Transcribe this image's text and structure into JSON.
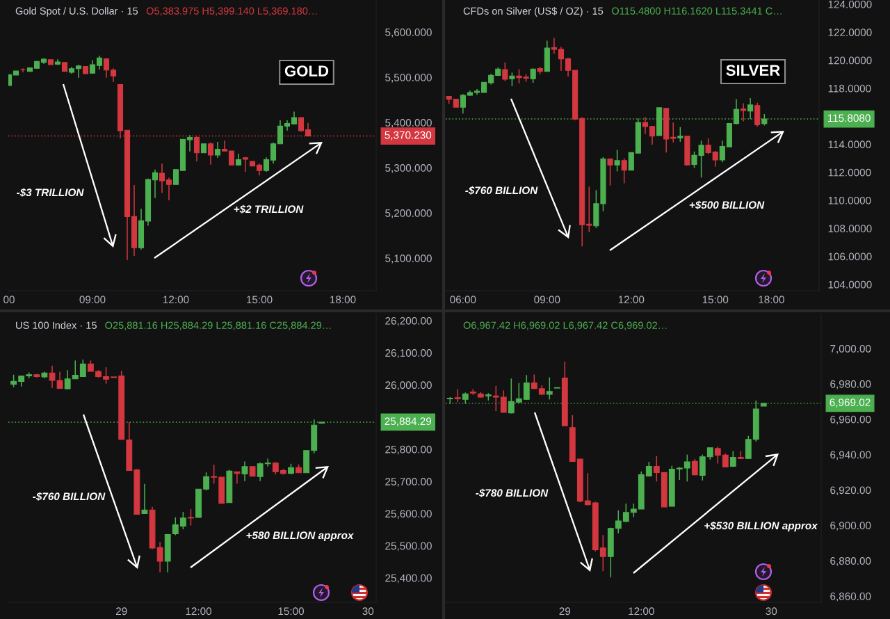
{
  "chart_data": [
    {
      "type": "candlestick",
      "title": "Gold Spot / U.S. Dollar · 15",
      "subtitle": "O5,383.975 H5,399.140 L5,369.180…",
      "categories": [
        "00",
        null,
        null,
        null,
        null,
        null,
        null,
        null,
        null,
        null,
        null,
        null,
        "09:00",
        null,
        null,
        null,
        null,
        null,
        null,
        null,
        null,
        null,
        null,
        null,
        "12:00",
        null,
        null,
        null,
        null,
        null,
        null,
        null,
        null,
        null,
        null,
        null,
        "15:00",
        null,
        null,
        null,
        null,
        null,
        null,
        null,
        null,
        null,
        null,
        null,
        "18:00"
      ],
      "ohlc": [
        [
          5482,
          5506,
          5482,
          5506
        ],
        [
          5505,
          5514,
          5505,
          5514
        ],
        [
          5517,
          5520,
          5511,
          5517
        ],
        [
          5513,
          5521,
          5513,
          5521
        ],
        [
          5520,
          5536,
          5519,
          5535
        ],
        [
          5533,
          5542,
          5530,
          5540
        ],
        [
          5539,
          5539,
          5528,
          5528
        ],
        [
          5529,
          5540,
          5527,
          5534
        ],
        [
          5533,
          5533,
          5513,
          5513
        ],
        [
          5511,
          5523,
          5508,
          5519
        ],
        [
          5519,
          5528,
          5499,
          5525
        ],
        [
          5524,
          5524,
          5508,
          5508
        ],
        [
          5509,
          5538,
          5508,
          5528
        ],
        [
          5526,
          5548,
          5517,
          5543
        ],
        [
          5541,
          5542,
          5499,
          5516
        ],
        [
          5516,
          5520,
          5490,
          5503
        ],
        [
          5484,
          5484,
          5365,
          5382
        ],
        [
          5383,
          5383,
          5096,
          5192
        ],
        [
          5192,
          5262,
          5105,
          5123
        ],
        [
          5123,
          5209,
          5119,
          5183
        ],
        [
          5182,
          5276,
          5172,
          5274
        ],
        [
          5273,
          5296,
          5233,
          5289
        ],
        [
          5288,
          5309,
          5244,
          5271
        ],
        [
          5273,
          5278,
          5228,
          5263
        ],
        [
          5263,
          5296,
          5263,
          5296
        ],
        [
          5294,
          5363,
          5294,
          5363
        ],
        [
          5362,
          5372,
          5336,
          5367
        ],
        [
          5367,
          5370,
          5314,
          5333
        ],
        [
          5333,
          5353,
          5333,
          5353
        ],
        [
          5353,
          5356,
          5307,
          5328
        ],
        [
          5328,
          5357,
          5322,
          5341
        ],
        [
          5341,
          5360,
          5336,
          5337
        ],
        [
          5337,
          5337,
          5306,
          5306
        ],
        [
          5306,
          5331,
          5304,
          5318
        ],
        [
          5322,
          5324,
          5291,
          5319
        ],
        [
          5314,
          5314,
          5304,
          5304
        ],
        [
          5306,
          5309,
          5283,
          5294
        ],
        [
          5294,
          5323,
          5291,
          5318
        ],
        [
          5317,
          5356,
          5309,
          5353
        ],
        [
          5353,
          5405,
          5352,
          5392
        ],
        [
          5392,
          5405,
          5382,
          5398
        ],
        [
          5397,
          5424,
          5396,
          5411
        ],
        [
          5411,
          5411,
          5380,
          5382
        ],
        [
          5383.975,
          5399.14,
          5369.18,
          5370.23
        ],
        null,
        null,
        null,
        null,
        null
      ],
      "colors": [
        "#4caf50",
        "#4caf50",
        "#d3373f",
        "#4caf50",
        "#4caf50",
        "#4caf50",
        "#d3373f",
        "#4caf50",
        "#d3373f",
        "#4caf50",
        "#4caf50",
        "#d3373f",
        "#4caf50",
        "#4caf50",
        "#d3373f",
        "#d3373f",
        "#d3373f",
        "#d3373f",
        "#d3373f",
        "#4caf50",
        "#4caf50",
        "#4caf50",
        "#d3373f",
        "#d3373f",
        "#4caf50",
        "#4caf50",
        "#4caf50",
        "#d3373f",
        "#4caf50",
        "#d3373f",
        "#4caf50",
        "#d3373f",
        "#d3373f",
        "#4caf50",
        "#d3373f",
        "#d3373f",
        "#d3373f",
        "#4caf50",
        "#4caf50",
        "#4caf50",
        "#4caf50",
        "#4caf50",
        "#d3373f",
        "#d3373f",
        null,
        null,
        null,
        null,
        null
      ],
      "ylim": [
        5028,
        5671
      ],
      "yticks": [
        {
          "value": 5100,
          "label": "5,100.000"
        },
        {
          "value": 5200,
          "label": "5,200.000"
        },
        {
          "value": 5300,
          "label": "5,300.000"
        },
        {
          "value": 5400,
          "label": "5,400.000"
        },
        {
          "value": 5500,
          "label": "5,500.000"
        },
        {
          "value": 5600,
          "label": "5,600.000"
        }
      ],
      "ref_lines": [
        {
          "axis": "y",
          "value": 5370.23,
          "label": "5,370.230",
          "color": "#d3373f",
          "line_style": "dotted"
        }
      ],
      "annotations": [
        "GOLD",
        "-$3 TRILLION",
        "+$2 TRILLION"
      ]
    },
    {
      "type": "candlestick",
      "title": "CFDs on Silver (US$ / OZ) · 15",
      "subtitle": "O115.4800 H116.1620 L115.3441 C…",
      "categories": [
        null,
        null,
        "06:00",
        null,
        null,
        null,
        null,
        null,
        null,
        null,
        null,
        null,
        null,
        null,
        "09:00",
        null,
        null,
        null,
        null,
        null,
        null,
        null,
        null,
        null,
        null,
        null,
        "12:00",
        null,
        null,
        null,
        null,
        null,
        null,
        null,
        null,
        null,
        null,
        null,
        "15:00",
        null,
        null,
        null,
        null,
        null,
        null,
        null,
        "18:00"
      ],
      "ohlc": [
        [
          117.42,
          117.42,
          116.89,
          117.22
        ],
        [
          117.22,
          117.22,
          116.65,
          116.65
        ],
        [
          116.65,
          117.58,
          116.2,
          117.5
        ],
        [
          117.5,
          117.83,
          117.46,
          117.7
        ],
        [
          117.7,
          117.95,
          117.54,
          117.79
        ],
        [
          117.7,
          118.43,
          117.7,
          118.43
        ],
        [
          118.39,
          119.04,
          118.27,
          118.92
        ],
        [
          118.92,
          119.49,
          118.88,
          119.37
        ],
        [
          119.33,
          119.85,
          118.51,
          118.64
        ],
        [
          118.68,
          119.12,
          118.15,
          118.88
        ],
        [
          118.88,
          119.37,
          118.35,
          118.76
        ],
        [
          118.8,
          119.0,
          118.47,
          118.72
        ],
        [
          118.68,
          119.41,
          118.39,
          119.37
        ],
        [
          119.41,
          119.53,
          119.0,
          119.2
        ],
        [
          119.2,
          121.39,
          119.2,
          120.87
        ],
        [
          120.91,
          121.59,
          120.46,
          120.78
        ],
        [
          120.78,
          120.95,
          119.24,
          120.1
        ],
        [
          120.1,
          120.18,
          118.84,
          119.28
        ],
        [
          119.28,
          119.28,
          115.72,
          115.8
        ],
        [
          115.84,
          115.92,
          106.72,
          108.26
        ],
        [
          108.3,
          110.98,
          107.73,
          108.22
        ],
        [
          108.18,
          110.73,
          108.02,
          109.76
        ],
        [
          109.76,
          113.08,
          109.23,
          112.96
        ],
        [
          112.96,
          113.0,
          111.06,
          112.52
        ],
        [
          112.52,
          113.61,
          112.07,
          112.84
        ],
        [
          112.84,
          113.0,
          111.22,
          112.15
        ],
        [
          112.15,
          113.41,
          112.15,
          113.41
        ],
        [
          113.37,
          115.84,
          113.37,
          115.56
        ],
        [
          115.56,
          115.96,
          114.75,
          115.27
        ],
        [
          115.27,
          115.31,
          113.98,
          114.58
        ],
        [
          114.62,
          116.61,
          114.62,
          116.61
        ],
        [
          116.57,
          116.57,
          113.41,
          114.38
        ],
        [
          114.5,
          115.56,
          114.14,
          114.42
        ],
        [
          114.46,
          115.23,
          114.18,
          114.58
        ],
        [
          114.58,
          114.58,
          112.52,
          112.52
        ],
        [
          112.56,
          113.49,
          112.31,
          113.21
        ],
        [
          113.21,
          114.26,
          111.63,
          113.94
        ],
        [
          113.94,
          114.42,
          113.29,
          113.41
        ],
        [
          113.45,
          113.53,
          112.4,
          112.88
        ],
        [
          112.88,
          114.26,
          112.72,
          113.85
        ],
        [
          113.81,
          115.48,
          113.81,
          115.48
        ],
        [
          115.48,
          117.22,
          115.43,
          116.49
        ],
        [
          116.53,
          116.93,
          115.64,
          116.41
        ],
        [
          116.37,
          117.3,
          115.8,
          116.81
        ],
        [
          116.77,
          116.97,
          115.27,
          115.39
        ],
        [
          115.48,
          116.162,
          115.3441,
          115.808
        ],
        null
      ],
      "colors": [
        "#d3373f",
        "#d3373f",
        "#4caf50",
        "#4caf50",
        "#4caf50",
        "#4caf50",
        "#4caf50",
        "#4caf50",
        "#d3373f",
        "#4caf50",
        "#d3373f",
        "#d3373f",
        "#4caf50",
        "#d3373f",
        "#4caf50",
        "#d3373f",
        "#d3373f",
        "#d3373f",
        "#d3373f",
        "#d3373f",
        "#d3373f",
        "#4caf50",
        "#4caf50",
        "#d3373f",
        "#4caf50",
        "#d3373f",
        "#4caf50",
        "#4caf50",
        "#d3373f",
        "#d3373f",
        "#4caf50",
        "#d3373f",
        "#d3373f",
        "#4caf50",
        "#d3373f",
        "#4caf50",
        "#4caf50",
        "#d3373f",
        "#d3373f",
        "#4caf50",
        "#4caf50",
        "#4caf50",
        "#d3373f",
        "#4caf50",
        "#d3373f",
        "#4caf50",
        null
      ],
      "ylim": [
        103.55,
        124.3
      ],
      "yticks": [
        {
          "value": 104,
          "label": "104.0000"
        },
        {
          "value": 106,
          "label": "106.0000"
        },
        {
          "value": 108,
          "label": "108.0000"
        },
        {
          "value": 110,
          "label": "110.0000"
        },
        {
          "value": 112,
          "label": "112.0000"
        },
        {
          "value": 114,
          "label": "114.0000"
        },
        {
          "value": 118,
          "label": "118.0000"
        },
        {
          "value": 120,
          "label": "120.0000"
        },
        {
          "value": 122,
          "label": "122.0000"
        },
        {
          "value": 124,
          "label": "124.0000"
        }
      ],
      "ref_lines": [
        {
          "axis": "y",
          "value": 115.808,
          "label": "115.8080",
          "color": "#4caf50",
          "line_style": "dotted"
        }
      ],
      "annotations": [
        "SILVER",
        "-$760 BILLION",
        "+$500 BILLION"
      ]
    },
    {
      "type": "candlestick",
      "title": "US 100 Index · 15",
      "subtitle": "O25,881.16 H25,884.29 L25,881.16 C25,884.29…",
      "categories": [
        null,
        null,
        null,
        null,
        null,
        null,
        null,
        null,
        null,
        null,
        null,
        null,
        null,
        null,
        "29",
        null,
        null,
        null,
        null,
        null,
        null,
        null,
        null,
        null,
        "12:00",
        null,
        null,
        null,
        null,
        null,
        null,
        null,
        null,
        null,
        null,
        null,
        "15:00",
        null,
        null,
        null,
        null,
        null,
        null,
        null,
        null,
        null,
        "30"
      ],
      "ohlc": [
        [
          26002,
          26032,
          25993,
          26011
        ],
        [
          26011,
          26028,
          25995,
          26028
        ],
        [
          26028,
          26039,
          26021,
          26032
        ],
        [
          26032,
          26034,
          26023,
          26026
        ],
        [
          26025,
          26041,
          26021,
          26037
        ],
        [
          26037,
          26060,
          25991,
          26014
        ],
        [
          26014,
          26041,
          25989,
          25989
        ],
        [
          25988,
          26046,
          25986,
          26019
        ],
        [
          26019,
          26076,
          26019,
          26030
        ],
        [
          26026,
          26079,
          26026,
          26065
        ],
        [
          26065,
          26076,
          26042,
          26042
        ],
        [
          26042,
          26046,
          26023,
          26026
        ],
        [
          26026,
          26055,
          26004,
          26018
        ],
        [
          26025,
          26025,
          26023,
          26023
        ],
        [
          26028,
          26044,
          25829,
          25831
        ],
        [
          25829,
          25884,
          25734,
          25734
        ],
        [
          25736,
          25739,
          25598,
          25598
        ],
        [
          25600,
          25692,
          25600,
          25611
        ],
        [
          25611,
          25621,
          25489,
          25493
        ],
        [
          25494,
          25512,
          25417,
          25452
        ],
        [
          25452,
          25535,
          25417,
          25535
        ],
        [
          25537,
          25588,
          25533,
          25565
        ],
        [
          25561,
          25605,
          25551,
          25586
        ],
        [
          25588,
          25614,
          25563,
          25586
        ],
        [
          25588,
          25676,
          25588,
          25676
        ],
        [
          25676,
          25728,
          25672,
          25715
        ],
        [
          25715,
          25752,
          25693,
          25713
        ],
        [
          25713,
          25713,
          25632,
          25632
        ],
        [
          25634,
          25736,
          25634,
          25732
        ],
        [
          25730,
          25730,
          25693,
          25725
        ],
        [
          25723,
          25762,
          25701,
          25746
        ],
        [
          25746,
          25746,
          25716,
          25716
        ],
        [
          25715,
          25759,
          25701,
          25755
        ],
        [
          25755,
          25771,
          25746,
          25757
        ],
        [
          25757,
          25760,
          25722,
          25730
        ],
        [
          25734,
          25739,
          25721,
          25725
        ],
        [
          25725,
          25755,
          25722,
          25743
        ],
        [
          25743,
          25753,
          25727,
          25727
        ],
        [
          25727,
          25796,
          25727,
          25796
        ],
        [
          25796,
          25893,
          25787,
          25875
        ],
        [
          25881.16,
          25884.29,
          25881.16,
          25884.29
        ],
        null,
        null,
        null,
        null,
        null,
        null
      ],
      "colors": [
        "#4caf50",
        "#4caf50",
        "#4caf50",
        "#d3373f",
        "#4caf50",
        "#d3373f",
        "#d3373f",
        "#4caf50",
        "#4caf50",
        "#4caf50",
        "#d3373f",
        "#d3373f",
        "#d3373f",
        "#d3373f",
        "#d3373f",
        "#d3373f",
        "#d3373f",
        "#4caf50",
        "#d3373f",
        "#d3373f",
        "#4caf50",
        "#4caf50",
        "#4caf50",
        "#d3373f",
        "#4caf50",
        "#4caf50",
        "#d3373f",
        "#d3373f",
        "#4caf50",
        "#d3373f",
        "#4caf50",
        "#d3373f",
        "#4caf50",
        "#4caf50",
        "#d3373f",
        "#d3373f",
        "#4caf50",
        "#d3373f",
        "#4caf50",
        "#4caf50",
        "#4caf50",
        null,
        null,
        null,
        null,
        null,
        null
      ],
      "ylim": [
        25324,
        26219.5
      ],
      "yticks": [
        {
          "value": 25400,
          "label": "25,400.00"
        },
        {
          "value": 25500,
          "label": "25,500.00"
        },
        {
          "value": 25600,
          "label": "25,600.00"
        },
        {
          "value": 25700,
          "label": "25,700.00"
        },
        {
          "value": 25800,
          "label": "25,800.00"
        },
        {
          "value": 26000,
          "label": "26,000.00"
        },
        {
          "value": 26100,
          "label": "26,100.00"
        },
        {
          "value": 26200,
          "label": "26,200.00"
        }
      ],
      "ref_lines": [
        {
          "axis": "y",
          "value": 25884.29,
          "label": "25,884.29",
          "color": "#4caf50",
          "line_style": "dotted"
        }
      ],
      "annotations": [
        "-$760 BILLION",
        "+580 BILLION approx"
      ]
    },
    {
      "type": "candlestick",
      "subtitle": "O6,967.42 H6,969.02 L6,967.42 C6,969.02…",
      "categories": [
        null,
        null,
        null,
        null,
        null,
        null,
        null,
        null,
        null,
        null,
        null,
        null,
        null,
        null,
        null,
        "29",
        null,
        null,
        null,
        null,
        null,
        null,
        null,
        null,
        null,
        "12:00",
        null,
        null,
        null,
        null,
        null,
        null,
        null,
        null,
        null,
        null,
        null,
        null,
        null,
        null,
        null,
        null,
        "30"
      ],
      "ohlc": [
        [
          6971.6,
          6972.5,
          6968.7,
          6971.9
        ],
        [
          6972.2,
          6977.0,
          6969.7,
          6971.6
        ],
        [
          6971.2,
          6975.1,
          6968.7,
          6974.4
        ],
        [
          6975.4,
          6977.0,
          6973.8,
          6974.8
        ],
        [
          6974.4,
          6975.4,
          6972.2,
          6972.5
        ],
        [
          6973.2,
          6974.8,
          6970.6,
          6973.8
        ],
        [
          6973.2,
          6978.9,
          6964.6,
          6972.5
        ],
        [
          6972.5,
          6976.3,
          6963.9,
          6963.9
        ],
        [
          6963.6,
          6983.0,
          6963.3,
          6970.0
        ],
        [
          6969.7,
          6980.5,
          6969.0,
          6971.6
        ],
        [
          6971.2,
          6985.0,
          6970.9,
          6980.5
        ],
        [
          6980.5,
          6985.3,
          6977.0,
          6977.3
        ],
        [
          6977.3,
          6979.2,
          6973.8,
          6974.1
        ],
        [
          6974.1,
          6983.7,
          6971.2,
          6975.7
        ],
        [
          6977.6,
          6977.9,
          6977.6,
          6977.9
        ],
        [
          6983.3,
          6992.6,
          6956.3,
          6956.3
        ],
        [
          6955.3,
          6962.3,
          6936.2,
          6936.2
        ],
        [
          6937.5,
          6937.5,
          6913.0,
          6913.6
        ],
        [
          6913.9,
          6929.5,
          6911.4,
          6911.7
        ],
        [
          6912.7,
          6913.3,
          6885.3,
          6886.2
        ],
        [
          6887.2,
          6894.5,
          6874.1,
          6882.4
        ],
        [
          6882.4,
          6898.7,
          6870.6,
          6898.3
        ],
        [
          6898.3,
          6908.5,
          6895.5,
          6902.5
        ],
        [
          6902.2,
          6912.3,
          6901.8,
          6907.3
        ],
        [
          6907.3,
          6912.3,
          6904.7,
          6909.2
        ],
        [
          6909.2,
          6930.5,
          6909.2,
          6928.6
        ],
        [
          6927.9,
          6935.9,
          6927.6,
          6933.4
        ],
        [
          6933.4,
          6939.1,
          6924.8,
          6929.9
        ],
        [
          6929.9,
          6929.9,
          6910.4,
          6910.4
        ],
        [
          6910.8,
          6933.7,
          6910.8,
          6931.8
        ],
        [
          6931.8,
          6933.0,
          6925.7,
          6932.4
        ],
        [
          6932.4,
          6940.0,
          6924.8,
          6935.9
        ],
        [
          6936.2,
          6937.5,
          6928.3,
          6928.6
        ],
        [
          6928.3,
          6940.0,
          6925.4,
          6938.8
        ],
        [
          6938.8,
          6943.9,
          6937.2,
          6943.9
        ],
        [
          6943.5,
          6944.5,
          6935.0,
          6939.7
        ],
        [
          6939.7,
          6940.7,
          6933.0,
          6933.0
        ],
        [
          6933.4,
          6942.0,
          6933.0,
          6938.5
        ],
        [
          6938.5,
          6942.0,
          6937.5,
          6937.8
        ],
        [
          6937.8,
          6950.6,
          6937.5,
          6948.6
        ],
        [
          6948.6,
          6970.6,
          6947.4,
          6965.8
        ],
        [
          6967.42,
          6969.02,
          6967.42,
          6969.02
        ],
        null
      ],
      "colors": [
        "#4caf50",
        "#d3373f",
        "#4caf50",
        "#d3373f",
        "#d3373f",
        "#4caf50",
        "#d3373f",
        "#d3373f",
        "#4caf50",
        "#4caf50",
        "#4caf50",
        "#d3373f",
        "#d3373f",
        "#4caf50",
        "#4caf50",
        "#d3373f",
        "#d3373f",
        "#d3373f",
        "#d3373f",
        "#d3373f",
        "#d3373f",
        "#4caf50",
        "#4caf50",
        "#4caf50",
        "#4caf50",
        "#4caf50",
        "#4caf50",
        "#d3373f",
        "#d3373f",
        "#4caf50",
        "#4caf50",
        "#4caf50",
        "#d3373f",
        "#4caf50",
        "#4caf50",
        "#d3373f",
        "#d3373f",
        "#4caf50",
        "#d3373f",
        "#4caf50",
        "#4caf50",
        "#4caf50",
        null
      ],
      "ylim": [
        6856.5,
        7019.3
      ],
      "yticks": [
        {
          "value": 6860,
          "label": "6,860.00"
        },
        {
          "value": 6880,
          "label": "6,880.00"
        },
        {
          "value": 6900,
          "label": "6,900.00"
        },
        {
          "value": 6920,
          "label": "6,920.00"
        },
        {
          "value": 6940,
          "label": "6,940.00"
        },
        {
          "value": 6960,
          "label": "6,960.00"
        },
        {
          "value": 6980,
          "label": "6,980.00"
        },
        {
          "value": 7000,
          "label": "7,000.00"
        }
      ],
      "ref_lines": [
        {
          "axis": "y",
          "value": 6969.02,
          "label": "6,969.02",
          "color": "#4caf50",
          "line_style": "dotted"
        }
      ],
      "annotations": [
        "-$780 BILLION",
        "+$530 BILLION approx"
      ]
    }
  ]
}
